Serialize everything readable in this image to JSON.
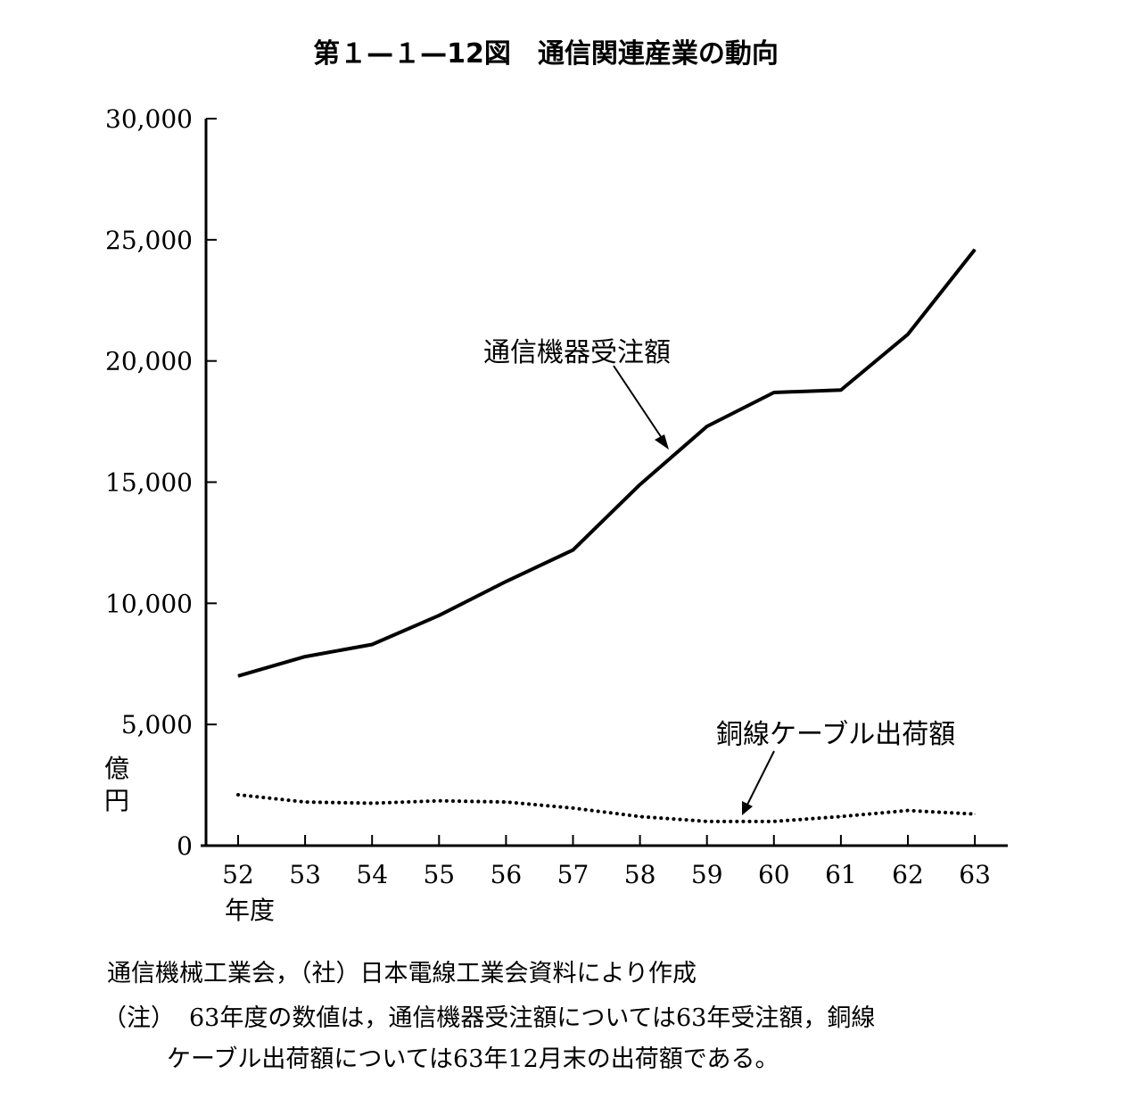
{
  "chart_data": {
    "type": "line",
    "title": "第１—１—12図　通信関連産業の動向",
    "ylabel": "億円",
    "xlabel": "年度",
    "ylim": [
      0,
      30000
    ],
    "yticks": [
      0,
      5000,
      10000,
      15000,
      20000,
      25000,
      30000
    ],
    "ytick_labels": [
      "0",
      "5,000",
      "10,000",
      "15,000",
      "20,000",
      "25,000",
      "30,000"
    ],
    "x": [
      "52",
      "53",
      "54",
      "55",
      "56",
      "57",
      "58",
      "59",
      "60",
      "61",
      "62",
      "63"
    ],
    "grid": false,
    "legend": "none",
    "series": [
      {
        "name": "通信機器受注額",
        "style": "solid",
        "color": "#000000",
        "values": [
          7000,
          7800,
          8300,
          9500,
          10900,
          12200,
          14900,
          17300,
          18700,
          18800,
          21100,
          24600
        ]
      },
      {
        "name": "銅線ケーブル出荷額",
        "style": "dotted",
        "color": "#000000",
        "values": [
          2100,
          1800,
          1750,
          1850,
          1800,
          1550,
          1200,
          1000,
          1000,
          1200,
          1450,
          1300
        ]
      }
    ],
    "annotations": [
      {
        "text": "通信機器受注額",
        "series": 0
      },
      {
        "text": "銅線ケーブル出荷額",
        "series": 1
      }
    ]
  },
  "notes": {
    "source": "通信機械工業会，（社）日本電線工業会資料により作成",
    "note_label": "（注）",
    "note_line1": "63年度の数値は，通信機器受注額については63年受注額，銅線",
    "note_line2": "ケーブル出荷額については63年12月末の出荷額である。"
  }
}
